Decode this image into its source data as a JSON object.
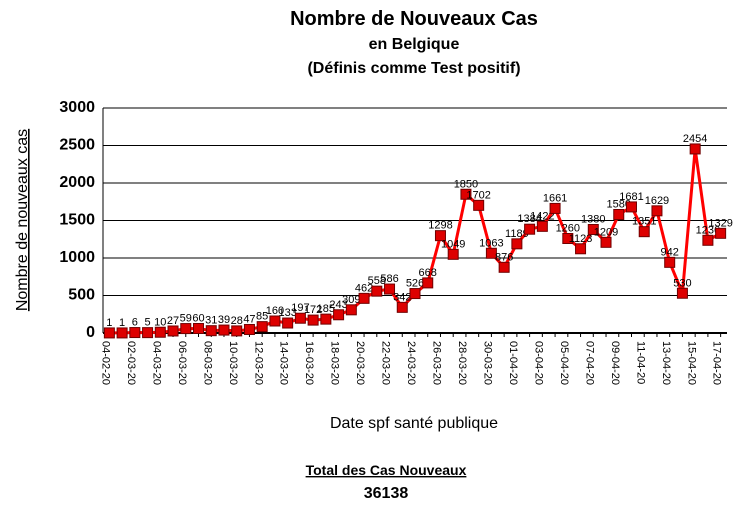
{
  "chart_data": {
    "type": "line",
    "title": "Nombre de Nouveaux Cas",
    "subtitle": "en Belgique",
    "subtitle2": "(Définis comme Test positif)",
    "y_label": "Nombre de nouveaux cas",
    "x_label": "Date spf santé publique",
    "total_label": "Total des Cas Nouveaux",
    "total_value": 36138,
    "categories": [
      "04-02-20",
      null,
      "02-03-20",
      null,
      "04-03-20",
      null,
      "06-03-20",
      null,
      "08-03-20",
      null,
      "10-03-20",
      null,
      "12-03-20",
      null,
      "14-03-20",
      null,
      "16-03-20",
      null,
      "18-03-20",
      null,
      "20-03-20",
      null,
      "22-03-20",
      null,
      "24-03-20",
      null,
      "26-03-20",
      null,
      "28-03-20",
      null,
      "30-03-20",
      null,
      "01-04-20",
      null,
      "03-04-20",
      null,
      "05-04-20",
      null,
      "07-04-20",
      null,
      "09-04-20",
      null,
      "11-04-20",
      null,
      "13-04-20",
      null,
      "15-04-20",
      null,
      "17-04-20"
    ],
    "series": [
      {
        "name": "Nouveaux cas",
        "color": "#ff0000",
        "marker_color": "#dd0000",
        "values": [
          1,
          1,
          6,
          5,
          10,
          27,
          59,
          60,
          31,
          39,
          28,
          47,
          85,
          160,
          133,
          197,
          172,
          185,
          243,
          309,
          462,
          558,
          586,
          342,
          526,
          668,
          1298,
          1049,
          1850,
          1702,
          1063,
          876,
          1189,
          1384,
          1422,
          1661,
          1260,
          1123,
          1380,
          1209,
          1580,
          1681,
          1351,
          1629,
          942,
          530,
          2454,
          1236,
          1329
        ]
      }
    ],
    "ylim": [
      0,
      3000
    ],
    "yticks": [
      0,
      500,
      1000,
      1500,
      2000,
      2500,
      3000
    ],
    "grid": true
  }
}
